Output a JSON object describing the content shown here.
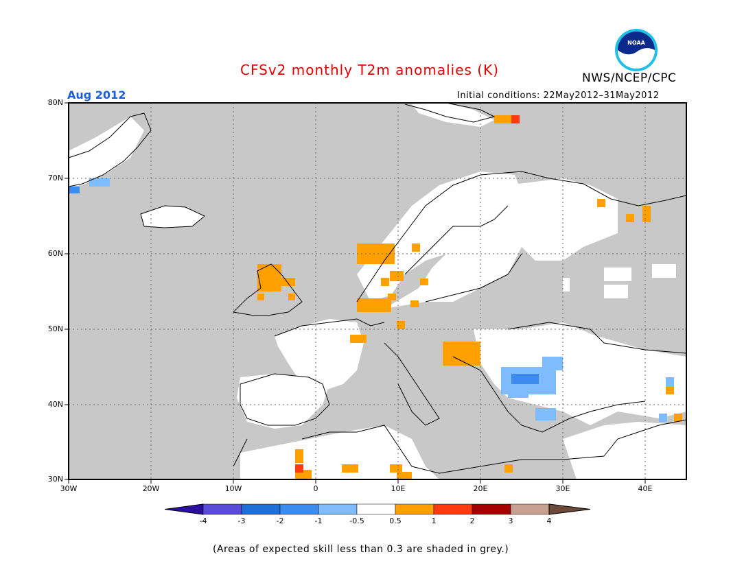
{
  "header": {
    "title": "CFSv2 monthly T2m anomalies (K)",
    "agency": "NWS/NCEP/CPC",
    "month": "Aug 2012",
    "initial_conditions": "Initial conditions: 22May2012–31May2012",
    "logo_text": "NOAA"
  },
  "map": {
    "lat_labels": [
      "80N",
      "70N",
      "60N",
      "50N",
      "40N",
      "30N"
    ],
    "lon_labels": [
      "30W",
      "20W",
      "10W",
      "0",
      "10E",
      "20E",
      "30E",
      "40E"
    ],
    "colors": {
      "grey_low_skill": "#c8c8c8",
      "ocean_grey": "#c8c8c8",
      "neutral": "#ffffff",
      "warm_05_1": "#ffa000",
      "warm_1_2": "#ff3a10",
      "cool_m1_m05": "#7fbcff",
      "cool_m2_m1": "#3c8cf0"
    }
  },
  "legend": {
    "tick_labels": [
      "-4",
      "-3",
      "-2",
      "-1",
      "-0.5",
      "0.5",
      "1",
      "2",
      "3",
      "4"
    ],
    "colors": [
      "#2a0fa0",
      "#5a4bd8",
      "#1f6fd8",
      "#3c8cf0",
      "#7fbcff",
      "#ffffff",
      "#ffa000",
      "#ff3a10",
      "#a50000",
      "#c8a090",
      "#6e4a3a"
    ]
  },
  "footnote": "(Areas of expected skill less than 0.3 are shaded in grey.)",
  "colors": {
    "title": "#e00000",
    "month": "#1a5fe0"
  }
}
